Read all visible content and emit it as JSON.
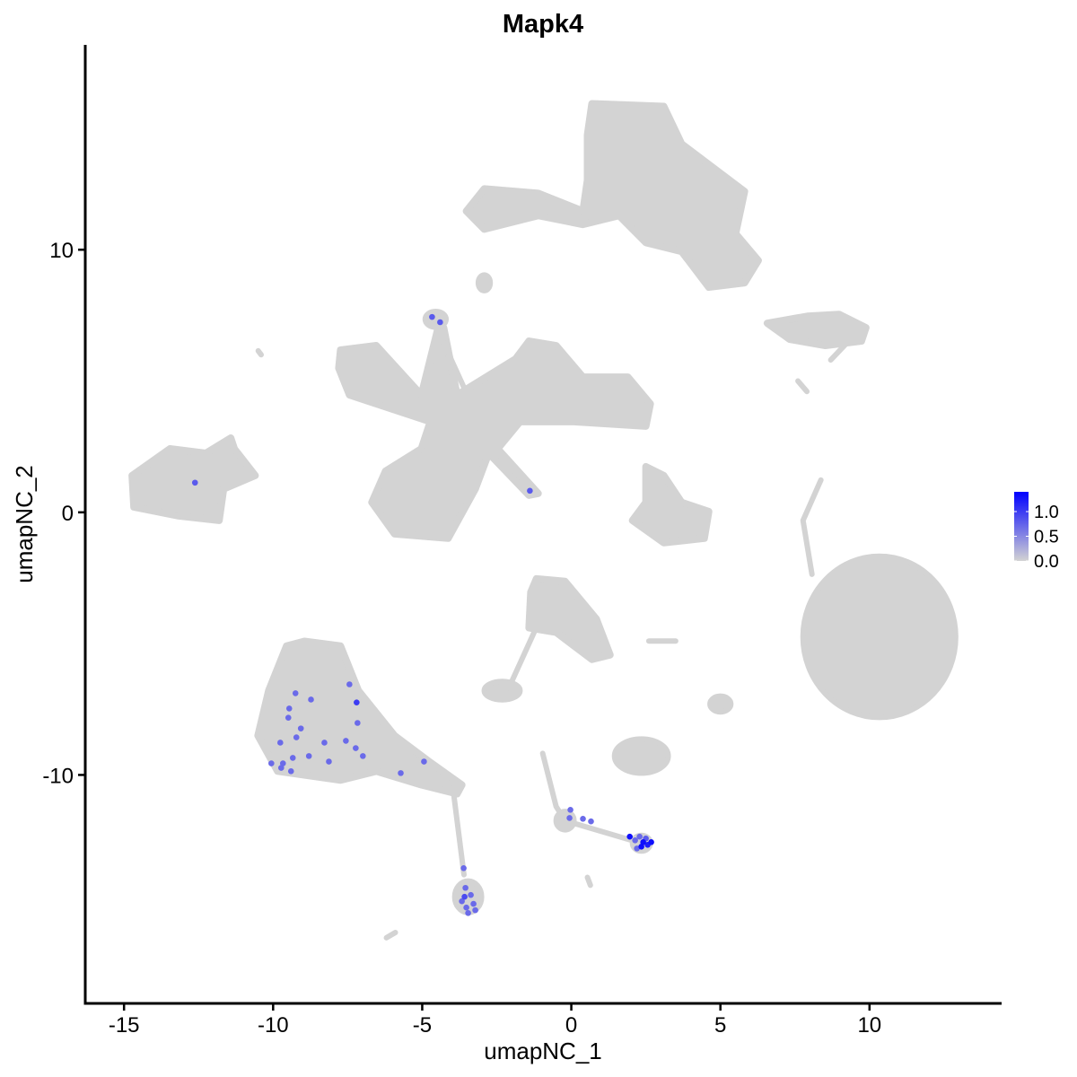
{
  "chart_data": {
    "type": "scatter",
    "title": "Mapk4",
    "xlabel": "umapNC_1",
    "ylabel": "umapNC_2",
    "xlim": [
      -16.3,
      14.4
    ],
    "ylim": [
      -18.7,
      17.8
    ],
    "xticks": [
      -15,
      -10,
      -5,
      0,
      5,
      10
    ],
    "yticks": [
      -10,
      0,
      10
    ],
    "grid": false,
    "background_color": "#D3D3D3",
    "color_low": "#D3D3D3",
    "color_high": "#0000FF",
    "legend": {
      "position": "right",
      "limits": [
        0,
        1.4
      ],
      "ticks": [
        "0.0",
        "0.5",
        "1.0"
      ],
      "tick_values": [
        0,
        0.5,
        1.0
      ]
    },
    "clusters": [
      {
        "shape": "polygon",
        "points": [
          [
            0.69,
            15.56
          ],
          [
            3.1,
            15.46
          ],
          [
            3.7,
            14.03
          ],
          [
            5.81,
            12.22
          ],
          [
            5.51,
            10.61
          ],
          [
            6.27,
            9.59
          ],
          [
            5.81,
            8.74
          ],
          [
            4.61,
            8.57
          ],
          [
            3.7,
            9.93
          ],
          [
            2.5,
            10.27
          ],
          [
            1.6,
            11.3
          ],
          [
            0.39,
            10.96
          ],
          [
            -1.11,
            11.3
          ],
          [
            -2.92,
            10.78
          ],
          [
            -3.52,
            11.47
          ],
          [
            -2.92,
            12.32
          ],
          [
            -1.11,
            12.15
          ],
          [
            0.39,
            11.47
          ],
          [
            0.54,
            12.66
          ],
          [
            0.54,
            14.37
          ]
        ]
      },
      {
        "shape": "polygon",
        "points": [
          [
            -7.74,
            6.18
          ],
          [
            -6.54,
            6.35
          ],
          [
            -5.03,
            4.47
          ],
          [
            -4.43,
            7.2
          ],
          [
            -4.28,
            7.03
          ],
          [
            -3.83,
            4.47
          ],
          [
            -1.87,
            5.84
          ],
          [
            -1.42,
            6.52
          ],
          [
            -0.51,
            6.35
          ],
          [
            0.39,
            5.15
          ],
          [
            1.9,
            5.15
          ],
          [
            2.65,
            4.13
          ],
          [
            2.5,
            3.28
          ],
          [
            0.09,
            3.45
          ],
          [
            -1.72,
            3.45
          ],
          [
            -2.47,
            2.42
          ],
          [
            -1.11,
            0.72
          ],
          [
            -1.42,
            0.65
          ],
          [
            -2.77,
            2.25
          ],
          [
            -3.22,
            0.89
          ],
          [
            -4.13,
            -0.99
          ],
          [
            -5.93,
            -0.82
          ],
          [
            -6.69,
            0.38
          ],
          [
            -6.23,
            1.57
          ],
          [
            -5.03,
            2.42
          ],
          [
            -4.73,
            3.45
          ],
          [
            -5.63,
            3.79
          ],
          [
            -7.44,
            4.47
          ],
          [
            -7.8,
            5.49
          ]
        ]
      },
      {
        "shape": "polygon",
        "points": [
          [
            -14.73,
            1.4
          ],
          [
            -13.46,
            2.42
          ],
          [
            -12.26,
            2.25
          ],
          [
            -11.42,
            2.83
          ],
          [
            -11.3,
            2.42
          ],
          [
            -10.6,
            1.4
          ],
          [
            -11.66,
            0.89
          ],
          [
            -11.81,
            -0.31
          ],
          [
            -13.16,
            -0.14
          ],
          [
            -14.67,
            0.2
          ]
        ]
      },
      {
        "shape": "ellipse",
        "center": [
          10.33,
          -4.74
        ],
        "rx": 2.56,
        "ry": 3.07
      },
      {
        "shape": "polygon",
        "points": [
          [
            -9.55,
            -5.09
          ],
          [
            -8.95,
            -4.91
          ],
          [
            -7.74,
            -5.09
          ],
          [
            -7.14,
            -6.79
          ],
          [
            -5.93,
            -8.5
          ],
          [
            -4.73,
            -9.52
          ],
          [
            -3.67,
            -10.38
          ],
          [
            -3.83,
            -10.72
          ],
          [
            -5.03,
            -10.38
          ],
          [
            -6.54,
            -9.86
          ],
          [
            -7.74,
            -10.2
          ],
          [
            -9.85,
            -9.86
          ],
          [
            -10.51,
            -8.5
          ],
          [
            -10.15,
            -6.79
          ]
        ]
      },
      {
        "shape": "ellipse",
        "center": [
          -3.46,
          -14.64
        ],
        "rx": 0.45,
        "ry": 0.6
      },
      {
        "shape": "polygon",
        "points": [
          [
            -1.17,
            -2.53
          ],
          [
            -0.21,
            -2.63
          ],
          [
            0.84,
            -4.06
          ],
          [
            1.3,
            -5.43
          ],
          [
            0.69,
            -5.6
          ],
          [
            -0.51,
            -4.57
          ],
          [
            -1.42,
            -4.4
          ],
          [
            -1.36,
            -3.04
          ]
        ]
      },
      {
        "shape": "ellipse",
        "center": [
          -2.32,
          -6.79
        ],
        "rx": 0.6,
        "ry": 0.35
      },
      {
        "shape": "polygon",
        "points": [
          [
            2.5,
            1.74
          ],
          [
            3.1,
            1.4
          ],
          [
            3.7,
            0.38
          ],
          [
            4.61,
            0.03
          ],
          [
            4.46,
            -0.99
          ],
          [
            3.1,
            -1.16
          ],
          [
            2.05,
            -0.31
          ],
          [
            2.5,
            0.38
          ]
        ]
      },
      {
        "shape": "polygon",
        "points": [
          [
            6.57,
            7.2
          ],
          [
            7.92,
            7.47
          ],
          [
            8.98,
            7.54
          ],
          [
            9.88,
            7.03
          ],
          [
            9.73,
            6.52
          ],
          [
            8.52,
            6.35
          ],
          [
            7.32,
            6.59
          ]
        ]
      },
      {
        "shape": "ellipse",
        "center": [
          2.35,
          -9.28
        ],
        "rx": 0.9,
        "ry": 0.65
      },
      {
        "shape": "ellipse",
        "center": [
          -0.21,
          -11.74
        ],
        "rx": 0.3,
        "ry": 0.35
      },
      {
        "shape": "ellipse",
        "center": [
          2.35,
          -12.6
        ],
        "rx": 0.3,
        "ry": 0.3
      },
      {
        "shape": "ellipse",
        "center": [
          5.0,
          -7.3
        ],
        "rx": 0.35,
        "ry": 0.3
      },
      {
        "shape": "ellipse",
        "center": [
          -4.55,
          7.35
        ],
        "rx": 0.35,
        "ry": 0.3
      },
      {
        "shape": "ellipse",
        "center": [
          -2.92,
          8.74
        ],
        "rx": 0.2,
        "ry": 0.3
      },
      {
        "shape": "polyline",
        "points": [
          [
            8.37,
            1.23
          ],
          [
            7.77,
            -0.31
          ],
          [
            8.07,
            -2.36
          ]
        ]
      },
      {
        "shape": "polyline",
        "points": [
          [
            -3.97,
            -10.5
          ],
          [
            -3.6,
            -13.8
          ]
        ]
      },
      {
        "shape": "polyline",
        "points": [
          [
            -1.1,
            -4.2
          ],
          [
            -2.1,
            -6.7
          ]
        ]
      },
      {
        "shape": "polyline",
        "points": [
          [
            -0.96,
            -9.18
          ],
          [
            -0.51,
            -11.2
          ],
          [
            -0.21,
            -11.74
          ],
          [
            2.35,
            -12.6
          ]
        ]
      },
      {
        "shape": "polyline",
        "points": [
          [
            -4.5,
            7.0
          ],
          [
            -3.5,
            4.5
          ]
        ]
      },
      {
        "shape": "polyline",
        "points": [
          [
            9.2,
            6.4
          ],
          [
            8.7,
            5.8
          ]
        ]
      },
      {
        "shape": "polyline",
        "points": [
          [
            7.6,
            5.0
          ],
          [
            7.9,
            4.6
          ]
        ]
      },
      {
        "shape": "polyline",
        "points": [
          [
            2.6,
            -4.9
          ],
          [
            3.5,
            -4.9
          ]
        ]
      },
      {
        "shape": "polyline",
        "points": [
          [
            0.54,
            -13.9
          ],
          [
            0.64,
            -14.2
          ]
        ]
      },
      {
        "shape": "polyline",
        "points": [
          [
            -6.2,
            -16.2
          ],
          [
            -5.9,
            -16.0
          ]
        ]
      },
      {
        "shape": "polyline",
        "points": [
          [
            -10.5,
            6.15
          ],
          [
            -10.4,
            6.0
          ]
        ]
      }
    ],
    "expressing_cells": [
      {
        "x": -12.62,
        "y": 1.13,
        "value": 0.8
      },
      {
        "x": -1.39,
        "y": 0.82,
        "value": 0.8
      },
      {
        "x": -4.67,
        "y": 7.44,
        "value": 0.8
      },
      {
        "x": -4.4,
        "y": 7.24,
        "value": 0.8
      },
      {
        "x": -7.44,
        "y": -6.55,
        "value": 0.7
      },
      {
        "x": -9.25,
        "y": -6.89,
        "value": 0.7
      },
      {
        "x": -8.73,
        "y": -7.13,
        "value": 0.7
      },
      {
        "x": -9.46,
        "y": -7.47,
        "value": 0.7
      },
      {
        "x": -7.2,
        "y": -7.24,
        "value": 1.0
      },
      {
        "x": -9.49,
        "y": -7.82,
        "value": 0.7
      },
      {
        "x": -9.07,
        "y": -8.23,
        "value": 0.7
      },
      {
        "x": -7.17,
        "y": -8.02,
        "value": 0.7
      },
      {
        "x": -9.22,
        "y": -8.57,
        "value": 0.7
      },
      {
        "x": -8.28,
        "y": -8.77,
        "value": 0.7
      },
      {
        "x": -7.56,
        "y": -8.7,
        "value": 0.7
      },
      {
        "x": -7.23,
        "y": -8.98,
        "value": 0.7
      },
      {
        "x": -9.76,
        "y": -8.77,
        "value": 0.7
      },
      {
        "x": -8.8,
        "y": -9.28,
        "value": 0.7
      },
      {
        "x": -10.06,
        "y": -9.56,
        "value": 0.7
      },
      {
        "x": -9.67,
        "y": -9.56,
        "value": 0.7
      },
      {
        "x": -9.34,
        "y": -9.35,
        "value": 0.7
      },
      {
        "x": -9.73,
        "y": -9.73,
        "value": 0.7
      },
      {
        "x": -9.4,
        "y": -9.86,
        "value": 0.7
      },
      {
        "x": -8.13,
        "y": -9.49,
        "value": 0.7
      },
      {
        "x": -6.99,
        "y": -9.28,
        "value": 0.7
      },
      {
        "x": -5.72,
        "y": -9.93,
        "value": 0.7
      },
      {
        "x": -4.94,
        "y": -9.49,
        "value": 0.7
      },
      {
        "x": -3.61,
        "y": -13.55,
        "value": 0.7
      },
      {
        "x": -3.55,
        "y": -14.3,
        "value": 0.7
      },
      {
        "x": -3.37,
        "y": -14.57,
        "value": 0.7
      },
      {
        "x": -3.67,
        "y": -14.81,
        "value": 0.7
      },
      {
        "x": -3.52,
        "y": -15.05,
        "value": 0.7
      },
      {
        "x": -3.28,
        "y": -14.91,
        "value": 0.7
      },
      {
        "x": -3.46,
        "y": -15.26,
        "value": 0.7
      },
      {
        "x": -3.22,
        "y": -15.15,
        "value": 0.7
      },
      {
        "x": -3.58,
        "y": -14.64,
        "value": 0.9
      },
      {
        "x": -0.03,
        "y": -11.33,
        "value": 0.7
      },
      {
        "x": -0.06,
        "y": -11.64,
        "value": 0.7
      },
      {
        "x": 0.39,
        "y": -11.67,
        "value": 0.7
      },
      {
        "x": 0.66,
        "y": -11.77,
        "value": 0.7
      },
      {
        "x": 2.14,
        "y": -12.49,
        "value": 0.7
      },
      {
        "x": 2.29,
        "y": -12.35,
        "value": 0.7
      },
      {
        "x": 2.5,
        "y": -12.42,
        "value": 0.8
      },
      {
        "x": 2.2,
        "y": -12.8,
        "value": 0.7
      },
      {
        "x": 1.96,
        "y": -12.35,
        "value": 1.3
      },
      {
        "x": 2.41,
        "y": -12.56,
        "value": 1.3
      },
      {
        "x": 2.68,
        "y": -12.56,
        "value": 1.3
      },
      {
        "x": 2.35,
        "y": -12.73,
        "value": 1.3
      },
      {
        "x": 2.56,
        "y": -12.66,
        "value": 1.2
      }
    ]
  }
}
